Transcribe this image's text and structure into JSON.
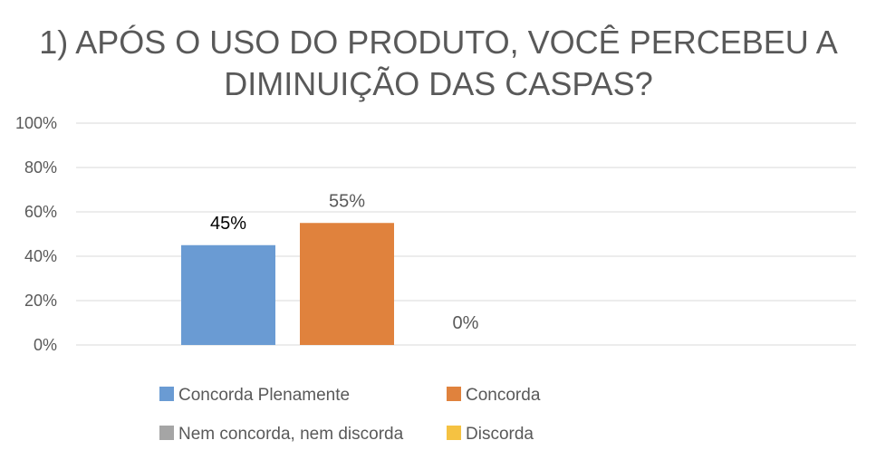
{
  "chart_data": {
    "type": "bar",
    "title_lines": [
      "1) APÓS O USO DO PRODUTO, VOCÊ PERCEBEU A",
      "DIMINUIÇÃO DAS CASPAS?"
    ],
    "xlabel": "",
    "ylabel": "",
    "ylim": [
      0,
      100
    ],
    "y_ticks": [
      "0%",
      "20%",
      "40%",
      "60%",
      "80%",
      "100%"
    ],
    "y_tick_values": [
      0,
      20,
      40,
      60,
      80,
      100
    ],
    "grid": true,
    "legend_position": "bottom",
    "series": [
      {
        "name": "Concorda Plenamente",
        "value": 45,
        "label": "45%",
        "color": "#6a9bd3",
        "label_color": "#000000"
      },
      {
        "name": "Concorda",
        "value": 55,
        "label": "55%",
        "color": "#e0823d",
        "label_color": "#595959"
      },
      {
        "name": "Nem concorda, nem discorda",
        "value": 0,
        "label": "0%",
        "color": "#a5a5a5",
        "label_color": "#595959"
      },
      {
        "name": "Discorda",
        "value": 0,
        "label": "",
        "color": "#f5c242",
        "label_color": "#595959"
      }
    ]
  }
}
